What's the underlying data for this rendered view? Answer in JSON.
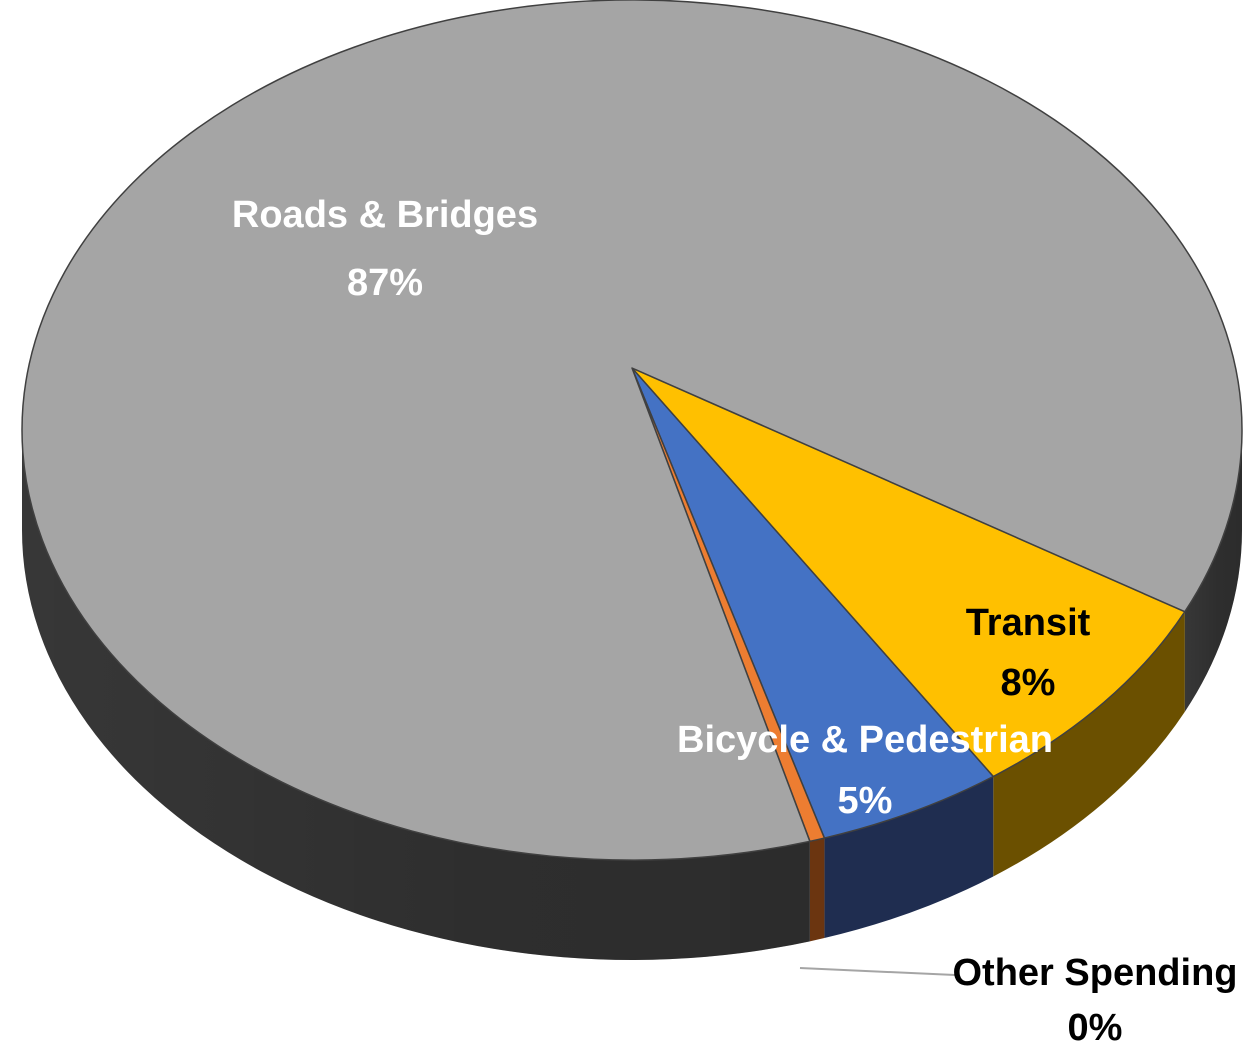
{
  "chart_data": {
    "type": "pie",
    "categories": [
      "Roads & Bridges",
      "Transit",
      "Bicycle & Pedestrian",
      "Other Spending"
    ],
    "values": [
      87,
      8,
      5,
      0.4
    ],
    "value_labels": [
      "87%",
      "8%",
      "5%",
      "0%"
    ],
    "colors": [
      "#a5a5a5",
      "#ffc000",
      "#4472c4",
      "#ed7d31"
    ]
  }
}
